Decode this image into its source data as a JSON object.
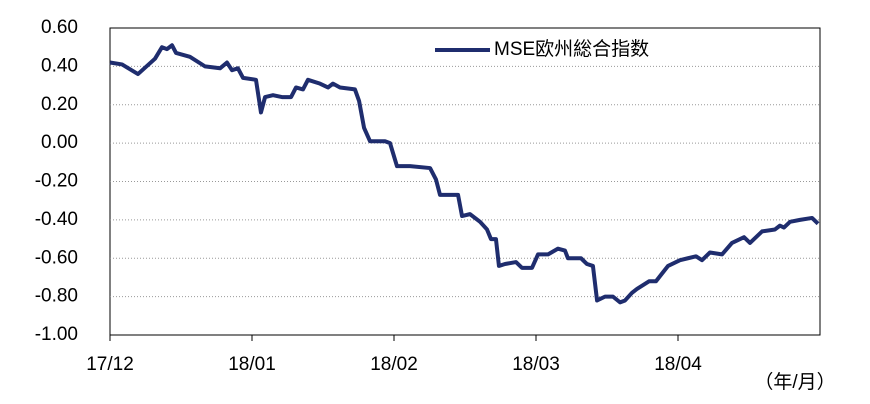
{
  "chart_data": {
    "type": "line",
    "x_label": "（年/月）",
    "xlim": [
      0,
      5
    ],
    "xticks": [
      {
        "value": 0,
        "label": "17/12"
      },
      {
        "value": 1,
        "label": "18/01"
      },
      {
        "value": 2,
        "label": "18/02"
      },
      {
        "value": 3,
        "label": "18/03"
      },
      {
        "value": 4,
        "label": "18/04"
      }
    ],
    "ylim": [
      -1.0,
      0.6
    ],
    "yticks": [
      {
        "value": 0.6,
        "label": "0.60"
      },
      {
        "value": 0.4,
        "label": "0.40"
      },
      {
        "value": 0.2,
        "label": "0.20"
      },
      {
        "value": 0,
        "label": "0.00"
      },
      {
        "value": -0.2,
        "label": "-0.20"
      },
      {
        "value": -0.4,
        "label": "-0.40"
      },
      {
        "value": -0.6,
        "label": "-0.60"
      },
      {
        "value": -0.8,
        "label": "-0.80"
      },
      {
        "value": -1.0,
        "label": "-1.00"
      }
    ],
    "grid": true,
    "legend": "upper right",
    "x": [
      0,
      0.085,
      0.197,
      0.317,
      0.366,
      0.401,
      0.437,
      0.465,
      0.563,
      0.669,
      0.775,
      0.824,
      0.859,
      0.901,
      0.937,
      1.028,
      1.063,
      1.092,
      1.148,
      1.211,
      1.275,
      1.31,
      1.359,
      1.394,
      1.479,
      1.535,
      1.57,
      1.62,
      1.725,
      1.754,
      1.789,
      1.831,
      1.937,
      1.972,
      2.021,
      2.113,
      2.254,
      2.296,
      2.324,
      2.451,
      2.479,
      2.535,
      2.606,
      2.655,
      2.683,
      2.718,
      2.739,
      2.782,
      2.859,
      2.901,
      2.944,
      2.972,
      3.014,
      3.085,
      3.155,
      3.204,
      3.225,
      3.317,
      3.359,
      3.401,
      3.43,
      3.486,
      3.542,
      3.592,
      3.627,
      3.676,
      3.711,
      3.796,
      3.845,
      3.887,
      3.93,
      4.014,
      4.07,
      4.127,
      4.169,
      4.225,
      4.31,
      4.345,
      4.38,
      4.465,
      4.507,
      4.592,
      4.683,
      4.718,
      4.746,
      4.789,
      4.859,
      4.944,
      4.986
    ],
    "series": [
      {
        "name": "MSE欧州総合指数",
        "color": "#1f2d6e",
        "values": [
          0.42,
          0.41,
          0.36,
          0.44,
          0.5,
          0.49,
          0.51,
          0.47,
          0.45,
          0.4,
          0.39,
          0.42,
          0.38,
          0.39,
          0.34,
          0.33,
          0.16,
          0.24,
          0.25,
          0.24,
          0.24,
          0.29,
          0.28,
          0.33,
          0.31,
          0.29,
          0.31,
          0.29,
          0.28,
          0.22,
          0.08,
          0.01,
          0.01,
          0.0,
          -0.12,
          -0.12,
          -0.13,
          -0.19,
          -0.27,
          -0.27,
          -0.38,
          -0.37,
          -0.41,
          -0.45,
          -0.5,
          -0.5,
          -0.64,
          -0.63,
          -0.62,
          -0.65,
          -0.65,
          -0.65,
          -0.58,
          -0.58,
          -0.55,
          -0.56,
          -0.6,
          -0.6,
          -0.63,
          -0.64,
          -0.82,
          -0.8,
          -0.8,
          -0.83,
          -0.82,
          -0.78,
          -0.76,
          -0.72,
          -0.72,
          -0.68,
          -0.64,
          -0.61,
          -0.6,
          -0.59,
          -0.61,
          -0.57,
          -0.58,
          -0.55,
          -0.52,
          -0.49,
          -0.52,
          -0.46,
          -0.45,
          -0.43,
          -0.44,
          -0.41,
          -0.4,
          -0.39,
          -0.42
        ]
      }
    ]
  }
}
